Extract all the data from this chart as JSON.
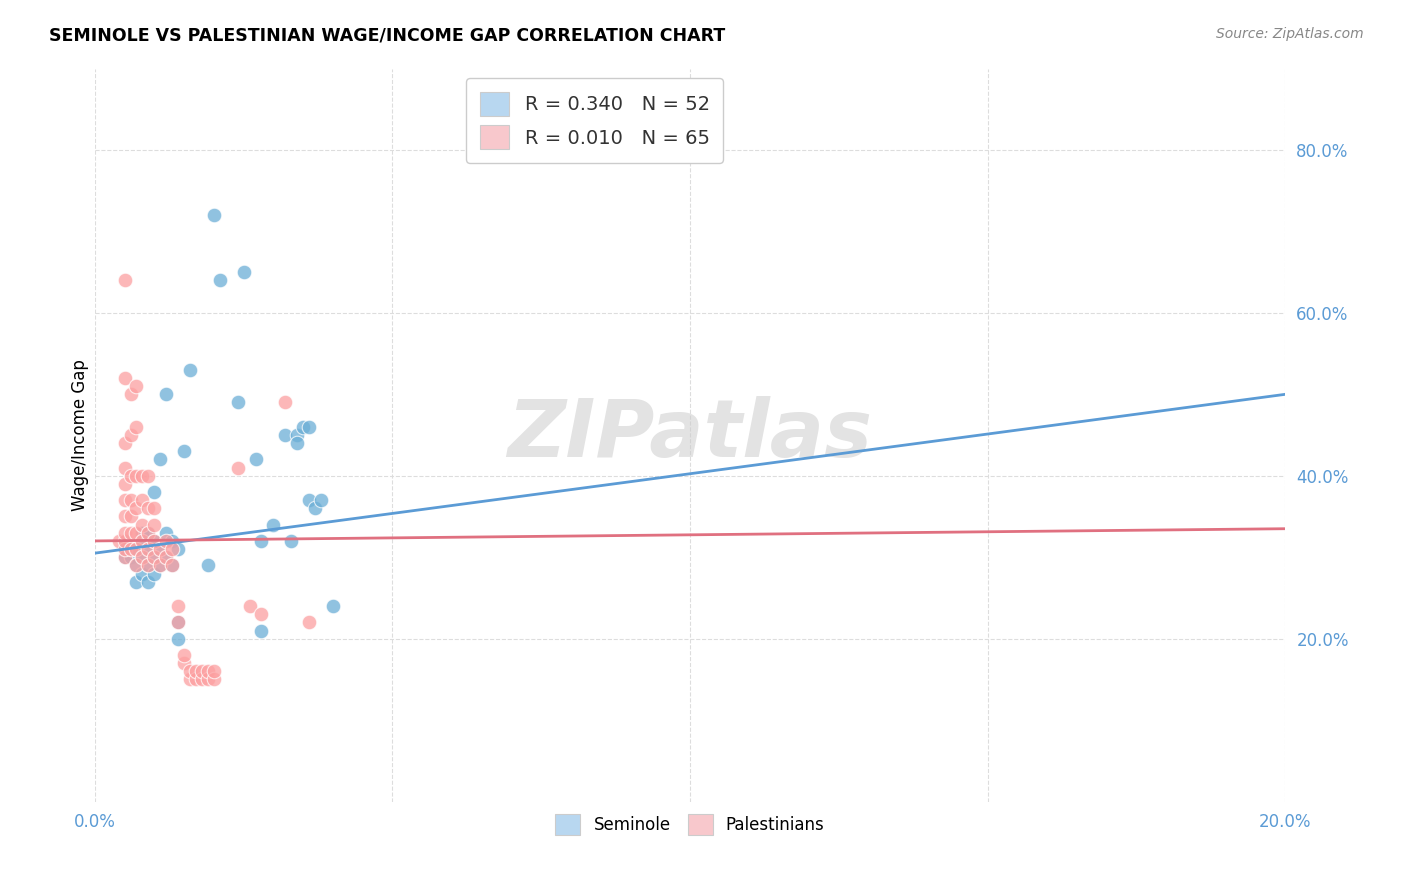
{
  "title": "SEMINOLE VS PALESTINIAN WAGE/INCOME GAP CORRELATION CHART",
  "source": "Source: ZipAtlas.com",
  "ylabel": "Wage/Income Gap",
  "watermark": "ZIPatlas",
  "seminole_R": 0.34,
  "seminole_N": 52,
  "palestinian_R": 0.01,
  "palestinian_N": 65,
  "seminole_color": "#6baed6",
  "palestinian_color": "#fc9fa0",
  "trend_seminole_color": "#5b9bd5",
  "trend_palestinian_color": "#e07080",
  "legend_seminole_face": "#b8d7f0",
  "legend_palestinian_face": "#f8c8cc",
  "ytick_color": "#5b9bd5",
  "xtick_color": "#5b9bd5",
  "seminole_points": [
    [
      0.5,
      30
    ],
    [
      0.5,
      31
    ],
    [
      0.5,
      32
    ],
    [
      0.6,
      30
    ],
    [
      0.6,
      31
    ],
    [
      0.7,
      27
    ],
    [
      0.7,
      29
    ],
    [
      0.7,
      31
    ],
    [
      0.8,
      28
    ],
    [
      0.8,
      30
    ],
    [
      0.8,
      32
    ],
    [
      0.8,
      33
    ],
    [
      0.9,
      27
    ],
    [
      0.9,
      29
    ],
    [
      0.9,
      31
    ],
    [
      0.9,
      33
    ],
    [
      1.0,
      28
    ],
    [
      1.0,
      30
    ],
    [
      1.0,
      32
    ],
    [
      1.0,
      38
    ],
    [
      1.1,
      29
    ],
    [
      1.1,
      31
    ],
    [
      1.1,
      42
    ],
    [
      1.2,
      30
    ],
    [
      1.2,
      33
    ],
    [
      1.2,
      50
    ],
    [
      1.3,
      29
    ],
    [
      1.3,
      32
    ],
    [
      1.4,
      31
    ],
    [
      1.4,
      22
    ],
    [
      1.4,
      20
    ],
    [
      1.5,
      43
    ],
    [
      1.6,
      53
    ],
    [
      1.9,
      29
    ],
    [
      2.0,
      72
    ],
    [
      2.1,
      64
    ],
    [
      2.4,
      49
    ],
    [
      2.5,
      65
    ],
    [
      2.7,
      42
    ],
    [
      2.8,
      32
    ],
    [
      2.8,
      21
    ],
    [
      3.0,
      34
    ],
    [
      3.2,
      45
    ],
    [
      3.3,
      32
    ],
    [
      3.4,
      45
    ],
    [
      3.4,
      44
    ],
    [
      3.5,
      46
    ],
    [
      3.6,
      46
    ],
    [
      3.6,
      37
    ],
    [
      3.7,
      36
    ],
    [
      3.8,
      37
    ],
    [
      4.0,
      24
    ]
  ],
  "palestinian_points": [
    [
      0.4,
      32
    ],
    [
      0.5,
      30
    ],
    [
      0.5,
      31
    ],
    [
      0.5,
      32
    ],
    [
      0.5,
      33
    ],
    [
      0.5,
      35
    ],
    [
      0.5,
      37
    ],
    [
      0.5,
      39
    ],
    [
      0.5,
      41
    ],
    [
      0.5,
      44
    ],
    [
      0.5,
      52
    ],
    [
      0.5,
      64
    ],
    [
      0.6,
      31
    ],
    [
      0.6,
      33
    ],
    [
      0.6,
      35
    ],
    [
      0.6,
      37
    ],
    [
      0.6,
      40
    ],
    [
      0.6,
      45
    ],
    [
      0.6,
      50
    ],
    [
      0.7,
      29
    ],
    [
      0.7,
      31
    ],
    [
      0.7,
      33
    ],
    [
      0.7,
      36
    ],
    [
      0.7,
      40
    ],
    [
      0.7,
      46
    ],
    [
      0.7,
      51
    ],
    [
      0.8,
      30
    ],
    [
      0.8,
      32
    ],
    [
      0.8,
      34
    ],
    [
      0.8,
      37
    ],
    [
      0.8,
      40
    ],
    [
      0.9,
      29
    ],
    [
      0.9,
      31
    ],
    [
      0.9,
      33
    ],
    [
      0.9,
      36
    ],
    [
      0.9,
      40
    ],
    [
      1.0,
      30
    ],
    [
      1.0,
      32
    ],
    [
      1.0,
      34
    ],
    [
      1.0,
      36
    ],
    [
      1.1,
      29
    ],
    [
      1.1,
      31
    ],
    [
      1.2,
      30
    ],
    [
      1.2,
      32
    ],
    [
      1.3,
      29
    ],
    [
      1.3,
      31
    ],
    [
      1.4,
      22
    ],
    [
      1.4,
      24
    ],
    [
      1.5,
      17
    ],
    [
      1.5,
      18
    ],
    [
      1.6,
      15
    ],
    [
      1.6,
      16
    ],
    [
      1.7,
      15
    ],
    [
      1.7,
      16
    ],
    [
      1.8,
      15
    ],
    [
      1.8,
      16
    ],
    [
      1.9,
      15
    ],
    [
      1.9,
      16
    ],
    [
      2.0,
      15
    ],
    [
      2.0,
      16
    ],
    [
      2.4,
      41
    ],
    [
      2.6,
      24
    ],
    [
      2.8,
      23
    ],
    [
      3.2,
      49
    ],
    [
      3.6,
      22
    ]
  ],
  "xlim": [
    0.0,
    20.0
  ],
  "ylim": [
    0.0,
    90.0
  ],
  "yticks": [
    20.0,
    40.0,
    60.0,
    80.0
  ],
  "ytick_labels": [
    "20.0%",
    "40.0%",
    "60.0%",
    "80.0%"
  ],
  "xtick_positions": [
    0.0,
    5.0,
    10.0,
    15.0,
    20.0
  ],
  "xtick_labels": [
    "0.0%",
    "",
    "",
    "",
    "20.0%"
  ],
  "grid_color": "#dddddd",
  "background_color": "#ffffff",
  "trend_sem_x0": 0.0,
  "trend_sem_x1": 20.0,
  "trend_sem_y0": 30.5,
  "trend_sem_y1": 50.0,
  "trend_pal_x0": 0.0,
  "trend_pal_x1": 20.0,
  "trend_pal_y0": 32.0,
  "trend_pal_y1": 33.5
}
